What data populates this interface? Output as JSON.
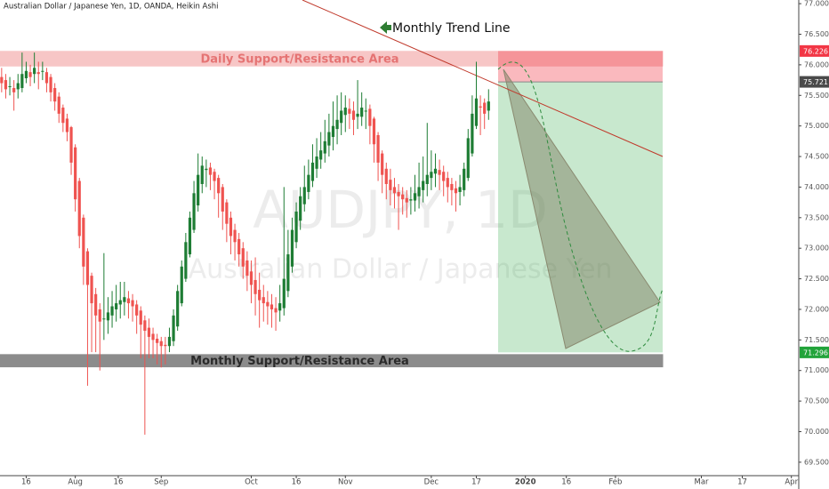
{
  "chart_data": {
    "type": "candlestick",
    "title": "Australian Dollar / Japanese Yen, 1D, OANDA, Heikin Ashi",
    "watermark": [
      "AUDJPY, 1D",
      "Australian Dollar / Japanese Yen"
    ],
    "annotation": "Monthly Trend Line",
    "up_color": "#1e7d34",
    "down_color": "#ef5350",
    "grid": false,
    "xlim": [
      -0.4,
      194.8
    ],
    "xticks": [
      {
        "value": 6,
        "label": "16"
      },
      {
        "value": 18,
        "label": "Aug"
      },
      {
        "value": 28.5,
        "label": "16"
      },
      {
        "value": 39,
        "label": "Sep"
      },
      {
        "value": 61,
        "label": "Oct"
      },
      {
        "value": 72,
        "label": "16"
      },
      {
        "value": 84,
        "label": "Nov"
      },
      {
        "value": 105,
        "label": "Dec"
      },
      {
        "value": 116,
        "label": "17"
      },
      {
        "value": 128,
        "label": "2020"
      },
      {
        "value": 138,
        "label": "16"
      },
      {
        "value": 150,
        "label": "Feb"
      },
      {
        "value": 171,
        "label": "Mar"
      },
      {
        "value": 181,
        "label": "17"
      },
      {
        "value": 193,
        "label": "Apr"
      }
    ],
    "ylim": [
      69.28,
      77.06
    ],
    "yticks": [
      {
        "value": 69.5,
        "label": "69.500"
      },
      {
        "value": 70,
        "label": "70.000"
      },
      {
        "value": 70.5,
        "label": "70.500"
      },
      {
        "value": 71,
        "label": "71.000"
      },
      {
        "value": 71.5,
        "label": "71.500"
      },
      {
        "value": 72,
        "label": "72.000"
      },
      {
        "value": 72.5,
        "label": "72.500"
      },
      {
        "value": 73,
        "label": "73.000"
      },
      {
        "value": 73.5,
        "label": "73.500"
      },
      {
        "value": 74,
        "label": "74.000"
      },
      {
        "value": 74.5,
        "label": "74.500"
      },
      {
        "value": 75,
        "label": "75.000"
      },
      {
        "value": 75.5,
        "label": "75.500"
      },
      {
        "value": 76,
        "label": "76.000"
      },
      {
        "value": 76.5,
        "label": "76.500"
      },
      {
        "value": 77,
        "label": "77.000"
      }
    ],
    "zones": [
      {
        "label": "Daily Support/Resistance Area",
        "top": 76.22,
        "bottom": 75.98,
        "color": "#f7c6c6",
        "text_color": "#e57373"
      },
      {
        "label": "Monthly Support/Resistance Area",
        "top": 71.26,
        "bottom": 71.06,
        "color": "#8c8c8c",
        "text_color": "#2b2b2b"
      }
    ],
    "position": {
      "stop": 76.226,
      "entry": 75.721,
      "target": 71.296,
      "stop_color": "#f23645",
      "entry_color": "#4a4a4a",
      "target_color": "#22a33a"
    },
    "ohlc": [
      [
        75.8,
        75.95,
        75.55,
        75.7
      ],
      [
        75.75,
        75.85,
        75.45,
        75.6
      ],
      [
        75.65,
        75.8,
        75.5,
        75.65
      ],
      [
        75.62,
        75.75,
        75.25,
        75.55
      ],
      [
        75.6,
        75.85,
        75.45,
        75.7
      ],
      [
        75.62,
        76.2,
        75.55,
        75.85
      ],
      [
        75.78,
        76.05,
        75.7,
        75.9
      ],
      [
        75.88,
        76.0,
        75.65,
        75.8
      ],
      [
        75.85,
        76.2,
        75.7,
        75.95
      ],
      [
        75.88,
        76.05,
        75.6,
        75.85
      ],
      [
        75.9,
        76.05,
        75.75,
        75.9
      ],
      [
        75.88,
        75.95,
        75.55,
        75.7
      ],
      [
        75.8,
        75.85,
        75.4,
        75.55
      ],
      [
        75.62,
        75.7,
        75.25,
        75.4
      ],
      [
        75.48,
        75.55,
        75.05,
        75.2
      ],
      [
        75.3,
        75.35,
        74.9,
        75.05
      ],
      [
        75.12,
        75.2,
        74.75,
        74.9
      ],
      [
        74.98,
        75.0,
        74.2,
        74.4
      ],
      [
        74.65,
        74.7,
        73.6,
        73.8
      ],
      [
        74.1,
        74.15,
        73.0,
        73.2
      ],
      [
        73.5,
        73.55,
        72.4,
        72.7
      ],
      [
        72.95,
        73.0,
        70.75,
        72.4
      ],
      [
        72.55,
        72.6,
        71.3,
        72.1
      ],
      [
        72.25,
        72.35,
        71.3,
        71.9
      ],
      [
        72.0,
        72.1,
        71.0,
        71.8
      ],
      [
        71.85,
        72.92,
        71.5,
        71.85
      ],
      [
        71.82,
        72.2,
        71.6,
        71.95
      ],
      [
        71.9,
        72.3,
        71.7,
        72.05
      ],
      [
        72.0,
        72.4,
        71.8,
        72.1
      ],
      [
        72.08,
        72.45,
        71.85,
        72.15
      ],
      [
        72.12,
        72.45,
        71.9,
        72.2
      ],
      [
        72.18,
        72.3,
        71.85,
        72.1
      ],
      [
        72.15,
        72.25,
        71.8,
        72.05
      ],
      [
        72.08,
        72.15,
        71.6,
        71.9
      ],
      [
        71.98,
        72.05,
        71.2,
        71.75
      ],
      [
        71.82,
        71.9,
        69.95,
        71.65
      ],
      [
        71.7,
        71.85,
        71.2,
        71.55
      ],
      [
        71.6,
        71.7,
        71.2,
        71.5
      ],
      [
        71.52,
        71.6,
        71.1,
        71.45
      ],
      [
        71.48,
        71.55,
        71.05,
        71.4
      ],
      [
        71.42,
        71.55,
        71.1,
        71.4
      ],
      [
        71.4,
        71.7,
        71.3,
        71.55
      ],
      [
        71.48,
        72.0,
        71.4,
        71.9
      ],
      [
        71.72,
        72.4,
        71.65,
        72.3
      ],
      [
        72.1,
        72.8,
        72.05,
        72.7
      ],
      [
        72.5,
        73.25,
        72.45,
        73.1
      ],
      [
        72.9,
        73.6,
        72.85,
        73.5
      ],
      [
        73.3,
        74.1,
        73.25,
        73.9
      ],
      [
        73.7,
        74.55,
        73.6,
        74.2
      ],
      [
        74.05,
        74.5,
        73.9,
        74.35
      ],
      [
        74.28,
        74.45,
        74.0,
        74.3
      ],
      [
        74.32,
        74.4,
        73.95,
        74.2
      ],
      [
        74.25,
        74.3,
        73.8,
        74.1
      ],
      [
        74.15,
        74.2,
        73.5,
        73.9
      ],
      [
        74.0,
        74.05,
        73.3,
        73.6
      ],
      [
        73.75,
        73.8,
        73.1,
        73.4
      ],
      [
        73.5,
        73.6,
        72.9,
        73.2
      ],
      [
        73.3,
        73.4,
        72.8,
        73.1
      ],
      [
        73.15,
        73.25,
        72.7,
        72.9
      ],
      [
        73.0,
        73.1,
        72.5,
        72.7
      ],
      [
        72.8,
        72.95,
        72.3,
        72.55
      ],
      [
        72.62,
        72.8,
        72.1,
        72.4
      ],
      [
        72.48,
        72.85,
        71.9,
        72.25
      ],
      [
        72.32,
        72.6,
        71.7,
        72.15
      ],
      [
        72.2,
        72.4,
        71.8,
        72.1
      ],
      [
        72.12,
        72.3,
        71.75,
        72.05
      ],
      [
        72.08,
        72.25,
        71.7,
        72.0
      ],
      [
        72.02,
        72.2,
        71.65,
        71.95
      ],
      [
        71.98,
        72.4,
        71.8,
        72.1
      ],
      [
        72.02,
        74.0,
        71.9,
        72.5
      ],
      [
        72.3,
        73.3,
        72.2,
        72.9
      ],
      [
        72.7,
        73.5,
        72.6,
        73.3
      ],
      [
        73.1,
        73.75,
        73.0,
        73.6
      ],
      [
        73.45,
        74.0,
        73.3,
        73.85
      ],
      [
        73.72,
        74.35,
        73.6,
        74.0
      ],
      [
        73.92,
        74.45,
        73.8,
        74.2
      ],
      [
        74.1,
        74.7,
        74.0,
        74.4
      ],
      [
        74.3,
        74.8,
        74.15,
        74.5
      ],
      [
        74.45,
        74.9,
        74.3,
        74.6
      ],
      [
        74.55,
        75.1,
        74.4,
        74.75
      ],
      [
        74.68,
        75.2,
        74.5,
        74.9
      ],
      [
        74.82,
        75.4,
        74.6,
        75.0
      ],
      [
        74.95,
        75.5,
        74.7,
        75.1
      ],
      [
        75.05,
        75.55,
        74.85,
        75.25
      ],
      [
        75.18,
        75.5,
        74.9,
        75.3
      ],
      [
        75.28,
        75.45,
        74.95,
        75.2
      ],
      [
        75.25,
        75.4,
        74.85,
        75.1
      ],
      [
        75.15,
        75.75,
        74.95,
        75.2
      ],
      [
        75.15,
        75.55,
        75.0,
        75.3
      ],
      [
        75.25,
        75.45,
        74.95,
        75.25
      ],
      [
        75.28,
        75.35,
        74.7,
        75.0
      ],
      [
        75.12,
        75.15,
        74.4,
        74.7
      ],
      [
        74.85,
        74.9,
        74.1,
        74.4
      ],
      [
        74.55,
        74.6,
        73.9,
        74.2
      ],
      [
        74.3,
        74.4,
        73.8,
        74.05
      ],
      [
        74.12,
        74.3,
        73.7,
        73.95
      ],
      [
        74.0,
        74.15,
        73.65,
        73.9
      ],
      [
        73.92,
        74.05,
        73.3,
        73.85
      ],
      [
        73.88,
        74.0,
        73.55,
        73.8
      ],
      [
        73.82,
        73.95,
        73.5,
        73.75
      ],
      [
        73.78,
        74.0,
        73.55,
        73.8
      ],
      [
        73.78,
        74.2,
        73.6,
        73.9
      ],
      [
        73.85,
        74.4,
        73.65,
        74.0
      ],
      [
        73.95,
        74.5,
        73.75,
        74.1
      ],
      [
        74.05,
        75.05,
        73.85,
        74.2
      ],
      [
        74.15,
        74.6,
        73.95,
        74.25
      ],
      [
        74.22,
        74.55,
        74.0,
        74.3
      ],
      [
        74.28,
        74.45,
        73.95,
        74.2
      ],
      [
        74.25,
        74.35,
        73.85,
        74.1
      ],
      [
        74.15,
        74.25,
        73.75,
        74.0
      ],
      [
        74.05,
        74.15,
        73.7,
        73.95
      ],
      [
        73.98,
        74.1,
        73.6,
        73.9
      ],
      [
        73.92,
        74.2,
        73.7,
        74.0
      ],
      [
        73.95,
        74.4,
        73.85,
        74.3
      ],
      [
        74.15,
        74.95,
        74.1,
        74.8
      ],
      [
        74.55,
        75.5,
        74.5,
        75.2
      ],
      [
        75.0,
        76.05,
        74.95,
        75.45
      ],
      [
        75.32,
        75.5,
        74.85,
        75.3
      ],
      [
        75.38,
        75.45,
        74.95,
        75.2
      ],
      [
        75.25,
        75.6,
        75.1,
        75.4
      ]
    ]
  }
}
